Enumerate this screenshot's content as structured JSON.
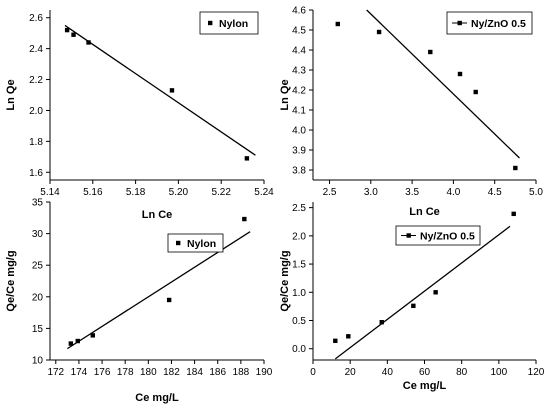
{
  "chart_data": [
    {
      "type": "scatter",
      "xlabel": "Ln Ce",
      "ylabel": "Ln Qe",
      "xlim": [
        5.14,
        5.24
      ],
      "ylim": [
        1.55,
        2.65
      ],
      "xticks": [
        "5.14",
        "5.16",
        "5.18",
        "5.20",
        "5.22",
        "5.24"
      ],
      "yticks": [
        "1.6",
        "1.8",
        "2.0",
        "2.2",
        "2.4",
        "2.6"
      ],
      "legend_position": "top-right",
      "series": [
        {
          "name": "Nylon",
          "x": [
            5.148,
            5.151,
            5.158,
            5.197,
            5.232
          ],
          "y": [
            2.52,
            2.49,
            2.44,
            2.13,
            1.69
          ]
        }
      ],
      "fit_line": {
        "x": [
          5.147,
          5.236
        ],
        "y": [
          2.55,
          1.71
        ]
      }
    },
    {
      "type": "scatter",
      "xlabel": "Ln Ce",
      "ylabel": "Ln Qe",
      "xlim": [
        2.3,
        5.0
      ],
      "ylim": [
        3.75,
        4.6
      ],
      "xticks": [
        "2.5",
        "3.0",
        "3.5",
        "4.0",
        "4.5",
        "5.0"
      ],
      "yticks": [
        "3.8",
        "3.9",
        "4.0",
        "4.1",
        "4.2",
        "4.3",
        "4.4",
        "4.5",
        "4.6"
      ],
      "legend_position": "top-right",
      "series": [
        {
          "name": "Ny/ZnO 0.5",
          "x": [
            2.6,
            3.1,
            3.72,
            4.08,
            4.27,
            4.75
          ],
          "y": [
            4.53,
            4.49,
            4.39,
            4.28,
            4.19,
            3.81
          ]
        }
      ],
      "fit_line": {
        "x": [
          2.95,
          4.8
        ],
        "y": [
          4.6,
          3.86
        ]
      }
    },
    {
      "type": "scatter",
      "xlabel": "Ce mg/L",
      "ylabel": "Qe/Ce mg/g",
      "xlim": [
        171.5,
        190
      ],
      "ylim": [
        10,
        35
      ],
      "xticks": [
        "172",
        "174",
        "176",
        "178",
        "180",
        "182",
        "184",
        "186",
        "188",
        "190"
      ],
      "yticks": [
        "10",
        "15",
        "20",
        "25",
        "30",
        "35"
      ],
      "legend_position": "top-right",
      "series": [
        {
          "name": "Nylon",
          "x": [
            173.3,
            173.9,
            175.2,
            181.8,
            188.3
          ],
          "y": [
            12.6,
            13.0,
            13.9,
            19.5,
            32.3
          ]
        }
      ],
      "fit_line": {
        "x": [
          173,
          188.8
        ],
        "y": [
          11.8,
          30.3
        ]
      }
    },
    {
      "type": "scatter",
      "xlabel": "Ce mg/L",
      "ylabel": "Qe/Ce mg/g",
      "xlim": [
        0,
        120
      ],
      "ylim": [
        -0.2,
        2.6
      ],
      "xticks": [
        "0",
        "20",
        "40",
        "60",
        "80",
        "100",
        "120"
      ],
      "yticks": [
        "0.0",
        "0.5",
        "1.0",
        "1.5",
        "2.0",
        "2.5"
      ],
      "legend_position": "top-right",
      "series": [
        {
          "name": "Ny/ZnO 0.5",
          "x": [
            12,
            19,
            37,
            54,
            66,
            108
          ],
          "y": [
            0.14,
            0.22,
            0.47,
            0.76,
            1.0,
            2.39
          ]
        }
      ],
      "fit_line": {
        "x": [
          12,
          106
        ],
        "y": [
          -0.18,
          2.17
        ]
      }
    }
  ]
}
